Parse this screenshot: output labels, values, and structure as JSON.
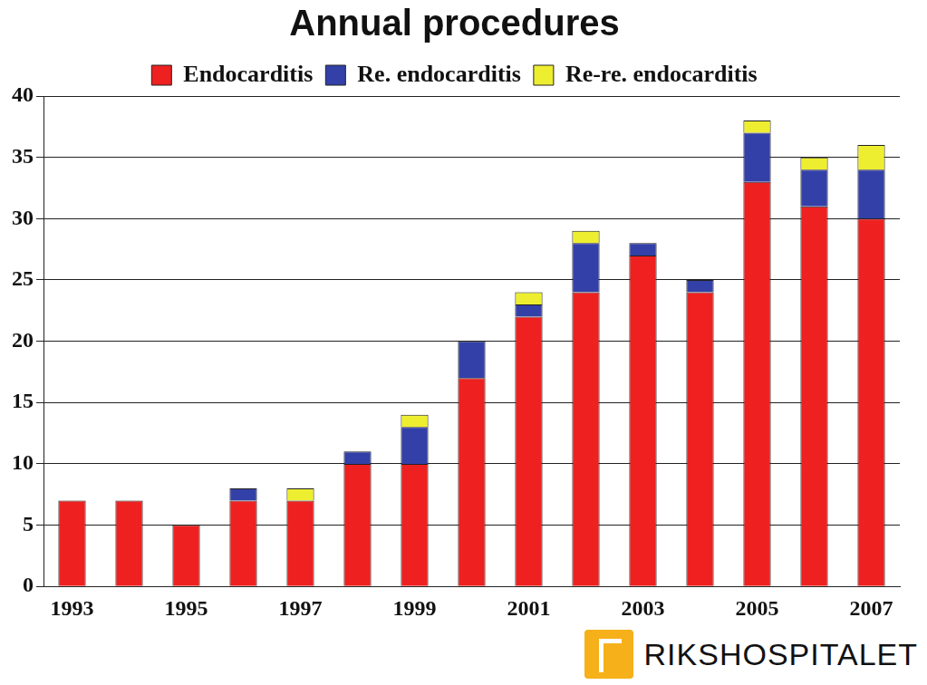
{
  "chart_data": {
    "type": "bar",
    "title": "Annual procedures",
    "categories": [
      "1993",
      null,
      "1995",
      null,
      "1997",
      null,
      "1999",
      null,
      "2001",
      null,
      "2003",
      null,
      "2005",
      null,
      "2007"
    ],
    "series": [
      {
        "name": "Endocarditis",
        "color": "#ee2020",
        "values": [
          7,
          7,
          5,
          7,
          7,
          10,
          10,
          17,
          22,
          24,
          27,
          24,
          33,
          31,
          30
        ]
      },
      {
        "name": "Re. endocarditis",
        "color": "#3340a8",
        "values": [
          0,
          0,
          0,
          1,
          0,
          1,
          3,
          3,
          1,
          4,
          1,
          1,
          4,
          3,
          4
        ]
      },
      {
        "name": "Re-re. endocarditis",
        "color": "#eeee30",
        "values": [
          0,
          0,
          0,
          0,
          1,
          0,
          1,
          0,
          1,
          1,
          0,
          0,
          1,
          1,
          2
        ]
      }
    ],
    "ylim": [
      0,
      40
    ],
    "yticks": [
      0,
      5,
      10,
      15,
      20,
      25,
      30,
      35,
      40
    ],
    "stacked": true,
    "grid": true,
    "legend": "top",
    "annotations": [
      "RIKSHOSPITALET"
    ]
  }
}
